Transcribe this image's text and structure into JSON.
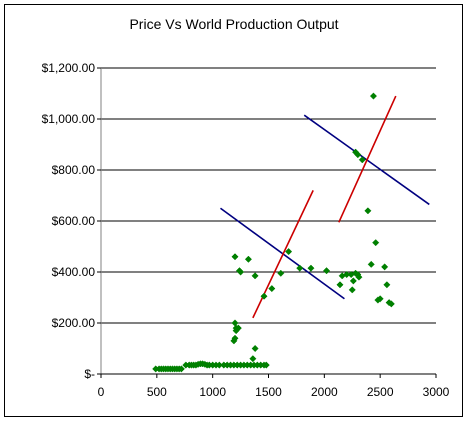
{
  "chart_data": {
    "type": "scatter",
    "title": "Price Vs World Production Output",
    "xlabel": "",
    "ylabel": "",
    "xlim": [
      0,
      3000
    ],
    "ylim": [
      0,
      1200
    ],
    "x_ticks": [
      0,
      500,
      1000,
      1500,
      2000,
      2500,
      3000
    ],
    "x_tick_labels": [
      "0",
      "500",
      "1000",
      "1500",
      "2000",
      "2500",
      "3000"
    ],
    "y_ticks": [
      0,
      200,
      400,
      600,
      800,
      1000,
      1200
    ],
    "y_tick_labels": [
      "$-",
      "$200.00",
      "$400.00",
      "$600.00",
      "$800.00",
      "$1,000.00",
      "$1,200.00"
    ],
    "grid": "horizontal",
    "plot_area_color": "#ffffff",
    "points_color": "#008000",
    "series": [
      {
        "marker": "diamond",
        "color": "#008000",
        "x": [
          490,
          520,
          540,
          560,
          580,
          600,
          620,
          640,
          660,
          680,
          700,
          720,
          760,
          790,
          810,
          830,
          850,
          870,
          890,
          910,
          930,
          950,
          970,
          1000,
          1030,
          1060,
          1100,
          1130,
          1160,
          1190,
          1220,
          1250,
          1280,
          1310,
          1340,
          1370,
          1400,
          1430,
          1460,
          1480,
          1360,
          1380,
          1200,
          1210,
          1230,
          1200,
          1190,
          1210,
          1240,
          1200,
          1250,
          1320,
          1380,
          1460,
          1530,
          1610,
          1680,
          1780,
          1880,
          2020,
          2140,
          2160,
          2200,
          2240,
          2260,
          2280,
          2300,
          2310,
          2250,
          2280,
          2340,
          2390,
          2420,
          2460,
          2480,
          2500,
          2540,
          2560,
          2580,
          2600,
          2440,
          2300
        ],
        "y": [
          20,
          20,
          20,
          20,
          20,
          20,
          20,
          20,
          20,
          20,
          20,
          20,
          35,
          35,
          35,
          35,
          35,
          38,
          40,
          40,
          38,
          35,
          35,
          35,
          35,
          35,
          35,
          35,
          35,
          35,
          35,
          35,
          35,
          35,
          35,
          35,
          35,
          35,
          35,
          35,
          60,
          100,
          200,
          180,
          180,
          140,
          130,
          170,
          405,
          460,
          400,
          450,
          385,
          305,
          335,
          395,
          480,
          415,
          415,
          405,
          350,
          385,
          390,
          390,
          365,
          395,
          390,
          380,
          330,
          870,
          840,
          640,
          430,
          515,
          290,
          295,
          420,
          350,
          280,
          275,
          1090,
          860
        ]
      }
    ],
    "trend_lines": [
      {
        "color": "#000080",
        "x": [
          1070,
          2180
        ],
        "y": [
          650,
          295
        ]
      },
      {
        "color": "#000080",
        "x": [
          1820,
          2940
        ],
        "y": [
          1015,
          665
        ]
      },
      {
        "color": "#cc0000",
        "x": [
          1360,
          1900
        ],
        "y": [
          220,
          720
        ]
      },
      {
        "color": "#cc0000",
        "x": [
          2130,
          2640
        ],
        "y": [
          595,
          1090
        ]
      }
    ]
  }
}
